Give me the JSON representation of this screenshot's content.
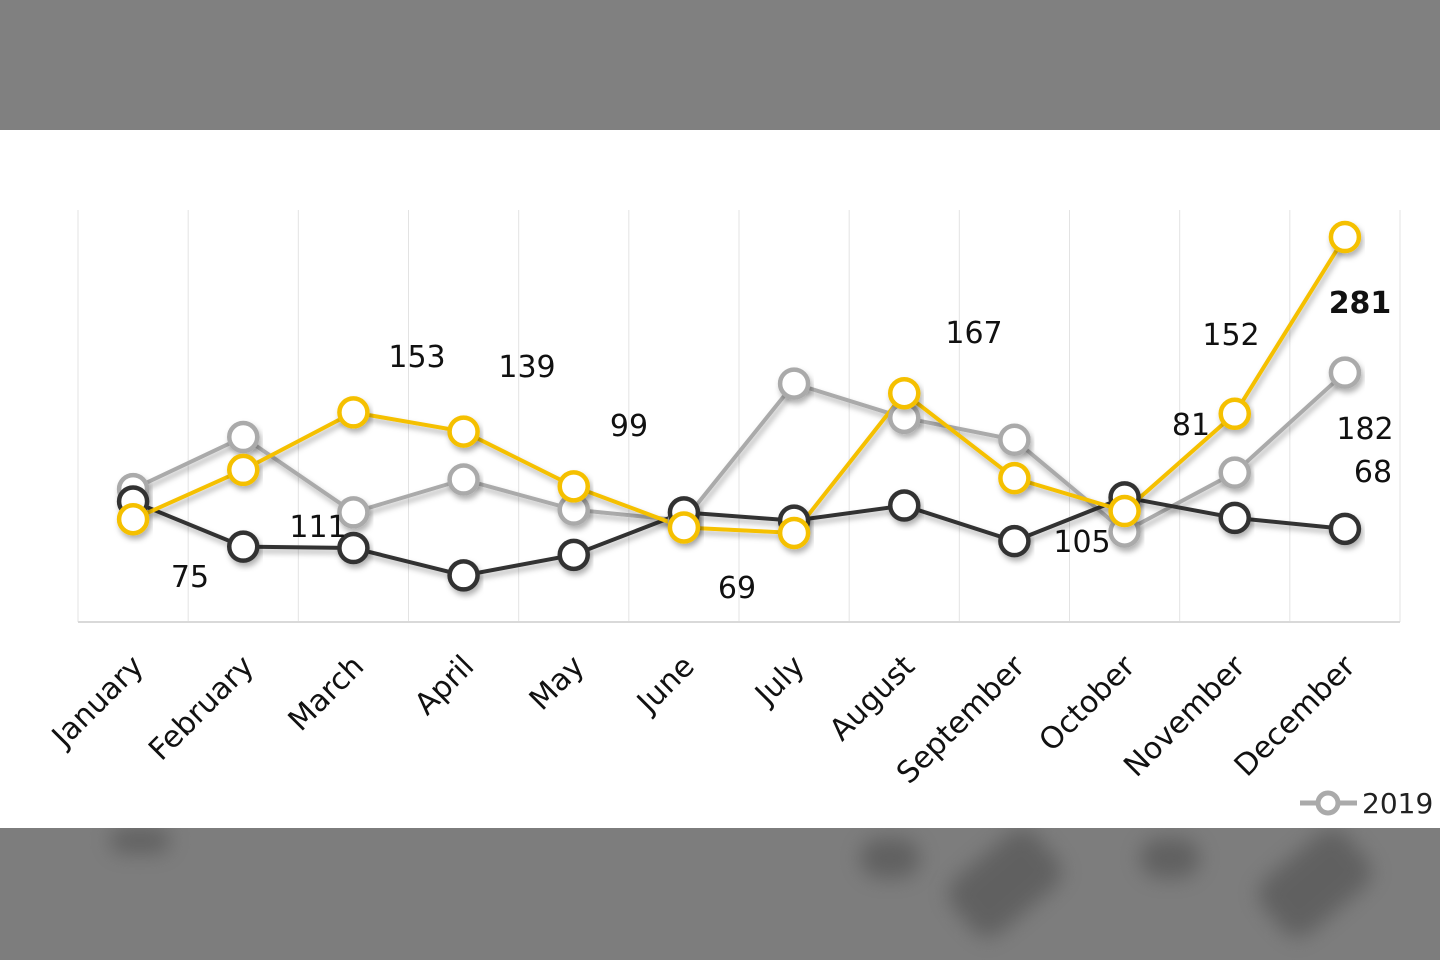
{
  "chart_data": {
    "type": "line",
    "categories": [
      "January",
      "February",
      "March",
      "April",
      "May",
      "June",
      "July",
      "August",
      "September",
      "October",
      "November",
      "December"
    ],
    "series": [
      {
        "name": "2019",
        "color": "#aaaaaa",
        "values": [
          97,
          135,
          80,
          104,
          82,
          74,
          174,
          149,
          133,
          66,
          109,
          182
        ]
      },
      {
        "color": "#333333",
        "values": [
          88,
          55,
          54,
          34,
          49,
          80,
          74,
          85,
          59,
          91,
          76,
          68
        ]
      },
      {
        "color": "#f5c000",
        "values": [
          75,
          111,
          153,
          139,
          99,
          69,
          65,
          167,
          105,
          81,
          152,
          281
        ]
      }
    ],
    "data_labels": [
      {
        "series": 2,
        "index": 0,
        "text": "75"
      },
      {
        "series": 2,
        "index": 1,
        "text": "111"
      },
      {
        "series": 2,
        "index": 2,
        "text": "153"
      },
      {
        "series": 2,
        "index": 3,
        "text": "139"
      },
      {
        "series": 2,
        "index": 4,
        "text": "99"
      },
      {
        "series": 2,
        "index": 5,
        "text": "69"
      },
      {
        "series": 2,
        "index": 7,
        "text": "167"
      },
      {
        "series": 2,
        "index": 8,
        "text": "105"
      },
      {
        "series": 2,
        "index": 9,
        "text": "81"
      },
      {
        "series": 2,
        "index": 10,
        "text": "152"
      },
      {
        "series": 2,
        "index": 11,
        "text": "281"
      },
      {
        "series": 0,
        "index": 11,
        "text": "182"
      },
      {
        "series": 1,
        "index": 11,
        "text": "68"
      }
    ],
    "legend": {
      "entries": [
        "2019"
      ],
      "placement": "bottom-right"
    },
    "ylim": [
      0,
      300
    ],
    "y_axis_shown": false,
    "grid": "vertical",
    "title": "",
    "xlabel": "",
    "ylabel": ""
  }
}
